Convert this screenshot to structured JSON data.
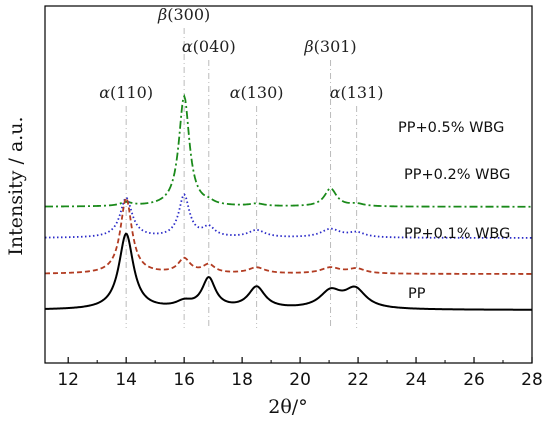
{
  "chart_data": {
    "type": "line",
    "xlabel": "2θ/°",
    "ylabel": "Intensity / a.u.",
    "xlim": [
      11.2,
      28
    ],
    "xticks": [
      "12",
      "14",
      "16",
      "18",
      "20",
      "22",
      "24",
      "26",
      "28"
    ],
    "y_tick_labels": "none",
    "grid": false,
    "legend": "inline labels at right of each curve",
    "peak_annotations": [
      {
        "label_greek": "α",
        "label_hkl": "(110)",
        "x": 14.0
      },
      {
        "label_greek": "β",
        "label_hkl": "(300)",
        "x": 16.0
      },
      {
        "label_greek": "α",
        "label_hkl": "(040)",
        "x": 16.85
      },
      {
        "label_greek": "α",
        "label_hkl": "(130)",
        "x": 18.5
      },
      {
        "label_greek": "β",
        "label_hkl": "(301)",
        "x": 21.05
      },
      {
        "label_greek": "α",
        "label_hkl": "(131)",
        "x": 21.95
      }
    ],
    "series": [
      {
        "name": "PP+0.5% WBG",
        "color": "#1a8a1a",
        "style": "dash-dot",
        "baseline": 0.86,
        "peaks": [
          {
            "x": 14.0,
            "height": 0.03,
            "width": 0.25
          },
          {
            "x": 16.0,
            "height": 0.92,
            "width": 0.22
          },
          {
            "x": 16.85,
            "height": 0.02,
            "width": 0.2
          },
          {
            "x": 18.5,
            "height": 0.02,
            "width": 0.3
          },
          {
            "x": 21.05,
            "height": 0.15,
            "width": 0.25
          },
          {
            "x": 21.95,
            "height": 0.02,
            "width": 0.3
          }
        ]
      },
      {
        "name": "PP+0.2% WBG",
        "color": "#2b2bc8",
        "style": "dotted",
        "baseline": 0.6,
        "peaks": [
          {
            "x": 14.0,
            "height": 0.33,
            "width": 0.25
          },
          {
            "x": 16.0,
            "height": 0.35,
            "width": 0.22
          },
          {
            "x": 16.85,
            "height": 0.08,
            "width": 0.25
          },
          {
            "x": 18.5,
            "height": 0.06,
            "width": 0.35
          },
          {
            "x": 21.05,
            "height": 0.07,
            "width": 0.4
          },
          {
            "x": 21.95,
            "height": 0.04,
            "width": 0.35
          }
        ]
      },
      {
        "name": "PP+0.1% WBG",
        "color": "#b23c22",
        "style": "dashed",
        "baseline": 0.3,
        "peaks": [
          {
            "x": 14.0,
            "height": 0.63,
            "width": 0.24
          },
          {
            "x": 16.0,
            "height": 0.12,
            "width": 0.25
          },
          {
            "x": 16.85,
            "height": 0.07,
            "width": 0.25
          },
          {
            "x": 18.5,
            "height": 0.05,
            "width": 0.35
          },
          {
            "x": 21.05,
            "height": 0.05,
            "width": 0.4
          },
          {
            "x": 21.95,
            "height": 0.04,
            "width": 0.35
          }
        ]
      },
      {
        "name": "PP",
        "color": "#000000",
        "style": "solid",
        "baseline": 0.0,
        "peaks": [
          {
            "x": 14.0,
            "height": 0.63,
            "width": 0.3
          },
          {
            "x": 16.0,
            "height": 0.05,
            "width": 0.35
          },
          {
            "x": 16.85,
            "height": 0.25,
            "width": 0.28
          },
          {
            "x": 18.5,
            "height": 0.18,
            "width": 0.35
          },
          {
            "x": 21.05,
            "height": 0.14,
            "width": 0.45
          },
          {
            "x": 21.9,
            "height": 0.16,
            "width": 0.45
          }
        ]
      }
    ]
  }
}
